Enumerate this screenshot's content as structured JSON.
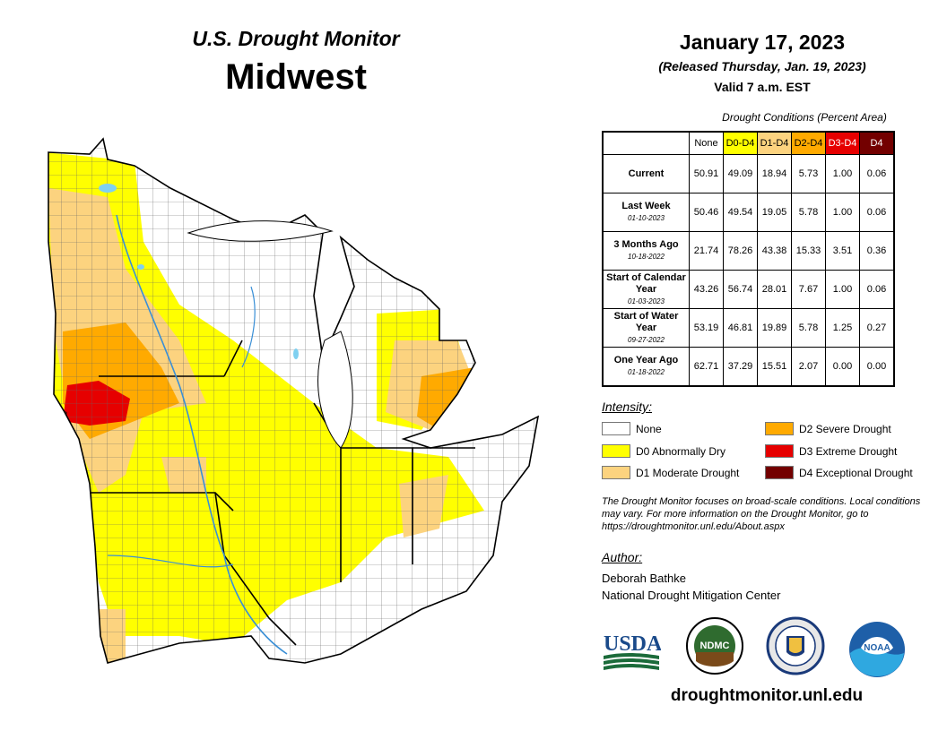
{
  "header": {
    "subtitle": "U.S. Drought Monitor",
    "region": "Midwest",
    "date": "January 17, 2023",
    "released": "(Released Thursday, Jan. 19, 2023)",
    "valid": "Valid 7 a.m. EST"
  },
  "table": {
    "caption": "Drought Conditions (Percent Area)",
    "columns": [
      "None",
      "D0-D4",
      "D1-D4",
      "D2-D4",
      "D3-D4",
      "D4"
    ],
    "rows": [
      {
        "label": "Current",
        "date": "",
        "values": [
          "50.91",
          "49.09",
          "18.94",
          "5.73",
          "1.00",
          "0.06"
        ]
      },
      {
        "label": "Last Week",
        "date": "01-10-2023",
        "values": [
          "50.46",
          "49.54",
          "19.05",
          "5.78",
          "1.00",
          "0.06"
        ]
      },
      {
        "label": "3 Months Ago",
        "date": "10-18-2022",
        "values": [
          "21.74",
          "78.26",
          "43.38",
          "15.33",
          "3.51",
          "0.36"
        ]
      },
      {
        "label": "Start of Calendar Year",
        "date": "01-03-2023",
        "values": [
          "43.26",
          "56.74",
          "28.01",
          "7.67",
          "1.00",
          "0.06"
        ]
      },
      {
        "label": "Start of Water Year",
        "date": "09-27-2022",
        "values": [
          "53.19",
          "46.81",
          "19.89",
          "5.78",
          "1.25",
          "0.27"
        ]
      },
      {
        "label": "One Year Ago",
        "date": "01-18-2022",
        "values": [
          "62.71",
          "37.29",
          "15.51",
          "2.07",
          "0.00",
          "0.00"
        ]
      }
    ]
  },
  "legend": {
    "title": "Intensity:",
    "items": [
      {
        "label": "None",
        "color": "#ffffff"
      },
      {
        "label": "D0 Abnormally Dry",
        "color": "#ffff00"
      },
      {
        "label": "D1 Moderate Drought",
        "color": "#fcd37f"
      },
      {
        "label": "D2 Severe Drought",
        "color": "#ffaa00"
      },
      {
        "label": "D3 Extreme Drought",
        "color": "#e60000"
      },
      {
        "label": "D4 Exceptional Drought",
        "color": "#730000"
      }
    ]
  },
  "note": "The Drought Monitor focuses on broad-scale conditions. Local conditions may vary. For more information on the Drought Monitor, go to https://droughtmonitor.unl.edu/About.aspx",
  "author": {
    "title": "Author:",
    "name": "Deborah Bathke",
    "org": "National Drought Mitigation Center"
  },
  "logos": {
    "usda": "USDA",
    "ndmc": "NDMC",
    "noaa": "NOAA"
  },
  "website": "droughtmonitor.unl.edu",
  "map": {
    "water_color": "#7fd0f0",
    "county_line": "#555555"
  }
}
